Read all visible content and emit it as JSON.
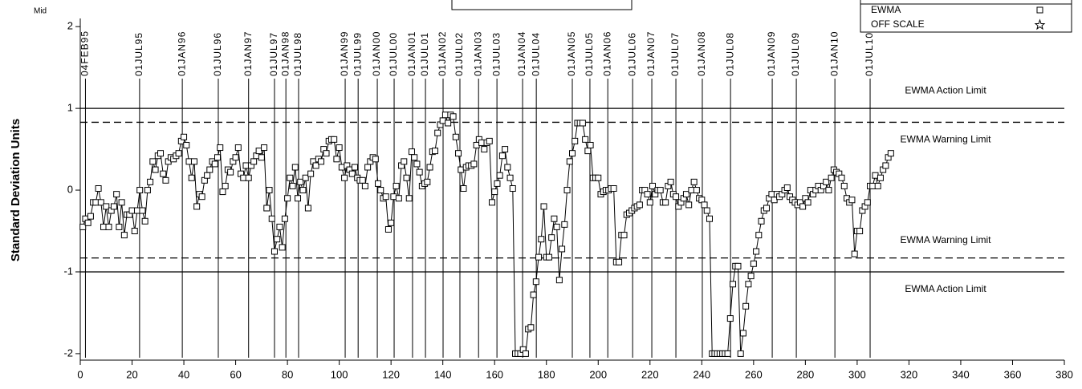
{
  "chart_data": {
    "type": "line",
    "y_label": "Standard Deviation Units",
    "y_annotation": "Mid",
    "x": [
      1,
      2,
      3,
      4,
      5,
      6,
      7,
      8,
      9,
      10,
      11,
      12,
      13,
      14,
      15,
      16,
      17,
      18,
      19,
      20,
      21,
      22,
      23,
      24,
      25,
      26,
      27,
      28,
      29,
      30,
      31,
      32,
      33,
      34,
      35,
      36,
      37,
      38,
      39,
      40,
      41,
      42,
      43,
      44,
      45,
      46,
      47,
      48,
      49,
      50,
      51,
      52,
      53,
      54,
      55,
      56,
      57,
      58,
      59,
      60,
      61,
      62,
      63,
      64,
      65,
      66,
      67,
      68,
      69,
      70,
      71,
      72,
      73,
      74,
      75,
      76,
      77,
      78,
      79,
      80,
      81,
      82,
      83,
      84,
      85,
      86,
      87,
      88,
      89,
      90,
      91,
      92,
      93,
      94,
      95,
      96,
      97,
      98,
      99,
      100,
      101,
      102,
      103,
      104,
      105,
      106,
      107,
      108,
      109,
      110,
      111,
      112,
      113,
      114,
      115,
      116,
      117,
      118,
      119,
      120,
      121,
      122,
      123,
      124,
      125,
      126,
      127,
      128,
      129,
      130,
      131,
      132,
      133,
      134,
      135,
      136,
      137,
      138,
      139,
      140,
      141,
      142,
      143,
      144,
      145,
      146,
      147,
      148,
      149,
      150,
      151,
      152,
      153,
      154,
      155,
      156,
      157,
      158,
      159,
      160,
      161,
      162,
      163,
      164,
      165,
      166,
      167,
      168,
      169,
      170,
      171,
      172,
      173,
      174,
      175,
      176,
      177,
      178,
      179,
      180,
      181,
      182,
      183,
      184,
      185,
      186,
      187,
      188,
      189,
      190,
      191,
      192,
      193,
      194,
      195,
      196,
      197,
      198,
      199,
      200,
      201,
      202,
      203,
      204,
      205,
      206,
      207,
      208,
      209,
      210,
      211,
      212,
      213,
      214,
      215,
      216,
      217,
      218,
      219,
      220,
      221,
      222,
      223,
      224,
      225,
      226,
      227,
      228,
      229,
      230,
      231,
      232,
      233,
      234,
      235,
      236,
      237,
      238,
      239,
      240,
      241,
      242,
      243,
      244,
      245,
      246,
      247,
      248,
      249,
      250,
      251,
      252,
      253,
      254,
      255,
      256,
      257,
      258,
      259,
      260,
      261,
      262,
      263,
      264,
      265,
      266,
      267,
      268,
      269,
      270,
      271,
      272,
      273,
      274,
      275,
      276,
      277,
      278,
      279,
      280,
      281,
      282,
      283,
      284,
      285,
      286,
      287,
      288,
      289,
      290,
      291,
      292,
      293,
      294,
      295,
      296,
      297,
      298,
      299,
      300,
      301,
      302,
      303,
      304,
      305,
      306,
      307,
      308,
      309,
      310,
      311,
      312,
      313
    ],
    "series": [
      {
        "name": "EWMA",
        "color": "#000000",
        "marker": "square",
        "values": [
          -0.45,
          -0.35,
          -0.4,
          -0.32,
          -0.15,
          -0.15,
          0.02,
          -0.15,
          -0.45,
          -0.2,
          -0.45,
          -0.25,
          -0.2,
          -0.05,
          -0.45,
          -0.15,
          -0.55,
          -0.3,
          -0.3,
          -0.25,
          -0.5,
          -0.25,
          0,
          -0.25,
          -0.38,
          0,
          0.1,
          0.35,
          0.25,
          0.42,
          0.45,
          0.2,
          0.12,
          0.35,
          0.4,
          0.38,
          0.42,
          0.45,
          0.6,
          0.65,
          0.55,
          0.35,
          0.15,
          0.35,
          -0.2,
          -0.05,
          -0.08,
          0.12,
          0.18,
          0.25,
          0.35,
          0.32,
          0.4,
          0.52,
          -0.02,
          0.05,
          0.25,
          0.22,
          0.35,
          0.4,
          0.52,
          0.2,
          0.15,
          0.3,
          0.15,
          0.3,
          0.35,
          0.42,
          0.48,
          0.4,
          0.52,
          -0.22,
          0,
          -0.35,
          -0.75,
          -0.6,
          -0.45,
          -0.7,
          -0.35,
          -0.1,
          0.15,
          0.05,
          0.28,
          -0.1,
          0.1,
          0,
          0.15,
          -0.22,
          0.2,
          0.35,
          0.3,
          0.38,
          0.35,
          0.5,
          0.45,
          0.6,
          0.62,
          0.62,
          0.38,
          0.52,
          0.28,
          0.15,
          0.3,
          0.25,
          0.2,
          0.28,
          0.15,
          0.12,
          0.12,
          0.05,
          0.28,
          0.35,
          0.4,
          0.38,
          0.08,
          0,
          -0.1,
          -0.08,
          -0.48,
          -0.4,
          -0.08,
          0.05,
          -0.1,
          0.3,
          0.35,
          0.15,
          -0.1,
          0.47,
          0.4,
          0.32,
          0.22,
          0.05,
          0.08,
          0.1,
          0.28,
          0.47,
          0.48,
          0.7,
          0.8,
          0.85,
          0.92,
          0.82,
          0.92,
          0.9,
          0.65,
          0.45,
          0.25,
          0.02,
          0.28,
          0.3,
          0.3,
          0.32,
          0.55,
          0.62,
          0.58,
          0.5,
          0.58,
          0.6,
          -0.15,
          -0.02,
          0.08,
          0.18,
          0.42,
          0.5,
          0.28,
          0.15,
          0.02,
          -2,
          -2,
          -2,
          -1.95,
          -2,
          -1.7,
          -1.68,
          -1.28,
          -1.12,
          -0.82,
          -0.6,
          -0.2,
          -0.82,
          -0.82,
          -0.58,
          -0.35,
          -0.45,
          -1.1,
          -0.72,
          -0.42,
          0,
          0.35,
          0.45,
          0.6,
          0.82,
          0.82,
          0.82,
          0.62,
          0.48,
          0.55,
          0.15,
          0.15,
          0.15,
          -0.05,
          -0.02,
          0,
          0,
          0.02,
          0.02,
          -0.88,
          -0.88,
          -0.55,
          -0.55,
          -0.3,
          -0.28,
          -0.25,
          -0.22,
          -0.2,
          -0.18,
          0,
          0,
          -0.05,
          -0.15,
          0.05,
          -0.05,
          0,
          0,
          -0.15,
          -0.15,
          0.05,
          0.1,
          -0.05,
          -0.08,
          -0.2,
          -0.15,
          -0.1,
          -0.05,
          -0.18,
          0,
          0.1,
          0,
          -0.1,
          -0.12,
          -0.18,
          -0.25,
          -0.35,
          -2,
          -2,
          -2,
          -2,
          -2,
          -2,
          -2,
          -1.57,
          -1.15,
          -0.93,
          -0.93,
          -2,
          -1.75,
          -1.42,
          -1.15,
          -1.05,
          -0.9,
          -0.75,
          -0.55,
          -0.38,
          -0.25,
          -0.22,
          -0.1,
          -0.05,
          -0.12,
          -0.05,
          -0.08,
          -0.05,
          0,
          0.03,
          -0.08,
          -0.12,
          -0.15,
          -0.18,
          -0.15,
          -0.2,
          -0.1,
          -0.15,
          0,
          -0.05,
          0,
          0.05,
          0,
          0.05,
          0.1,
          0,
          0.15,
          0.25,
          0.22,
          0.2,
          0.15,
          0.05,
          -0.1,
          -0.15,
          -0.12,
          -0.78,
          -0.5,
          -0.5,
          -0.25,
          -0.2,
          -0.15,
          0.05,
          0.05,
          0.18,
          0.05,
          0.15,
          0.25,
          0.3,
          0.4,
          0.45
        ]
      }
    ],
    "legend_extra": [
      {
        "label": "OFF SCALE",
        "marker": "star"
      }
    ],
    "reference_lines": [
      {
        "value": 1,
        "label": "EWMA Action Limit",
        "style": "solid"
      },
      {
        "value": 0.83,
        "label": "EWMA Warning Limit",
        "style": "dashed"
      },
      {
        "value": -0.83,
        "label": "EWMA Warning Limit",
        "style": "dashed"
      },
      {
        "value": -1,
        "label": "EWMA Action Limit",
        "style": "solid"
      }
    ],
    "date_markers": [
      {
        "x": 2,
        "label": "04FEB95"
      },
      {
        "x": 22.9,
        "label": "01JUL95"
      },
      {
        "x": 39.4,
        "label": "01JAN96"
      },
      {
        "x": 53.3,
        "label": "01JUL96"
      },
      {
        "x": 65,
        "label": "01JAN97"
      },
      {
        "x": 75,
        "label": "01JUL97"
      },
      {
        "x": 79.4,
        "label": "01JAN98"
      },
      {
        "x": 84.3,
        "label": "01JUL98"
      },
      {
        "x": 102.3,
        "label": "01JAN99"
      },
      {
        "x": 107.3,
        "label": "01JUL99"
      },
      {
        "x": 114.7,
        "label": "01JAN00"
      },
      {
        "x": 121.2,
        "label": "01JUL00"
      },
      {
        "x": 128.3,
        "label": "01JAN01"
      },
      {
        "x": 133.3,
        "label": "01JUL01"
      },
      {
        "x": 140.1,
        "label": "01JAN02"
      },
      {
        "x": 146.6,
        "label": "01JUL02"
      },
      {
        "x": 153.8,
        "label": "01JAN03"
      },
      {
        "x": 160.9,
        "label": "01JUL03"
      },
      {
        "x": 170.8,
        "label": "01JAN04"
      },
      {
        "x": 176.1,
        "label": "01JUL04"
      },
      {
        "x": 190,
        "label": "01JAN05"
      },
      {
        "x": 196.8,
        "label": "01JUL05"
      },
      {
        "x": 203.7,
        "label": "01JAN06"
      },
      {
        "x": 213.3,
        "label": "01JUL06"
      },
      {
        "x": 220.7,
        "label": "01JAN07"
      },
      {
        "x": 230,
        "label": "01JUL07"
      },
      {
        "x": 240.2,
        "label": "01JAN08"
      },
      {
        "x": 251.1,
        "label": "01JUL08"
      },
      {
        "x": 267.2,
        "label": "01JAN09"
      },
      {
        "x": 276.5,
        "label": "01JUL09"
      },
      {
        "x": 291.4,
        "label": "01JAN10"
      },
      {
        "x": 305,
        "label": "01JUL10"
      }
    ],
    "xlim": [
      0,
      380
    ],
    "xticks": [
      0,
      20,
      40,
      60,
      80,
      100,
      120,
      140,
      160,
      180,
      200,
      220,
      240,
      260,
      280,
      300,
      320,
      340,
      360,
      380
    ],
    "ylim": [
      -2.05,
      2.1
    ],
    "yticks": [
      -2,
      -1,
      0,
      1,
      2
    ]
  }
}
